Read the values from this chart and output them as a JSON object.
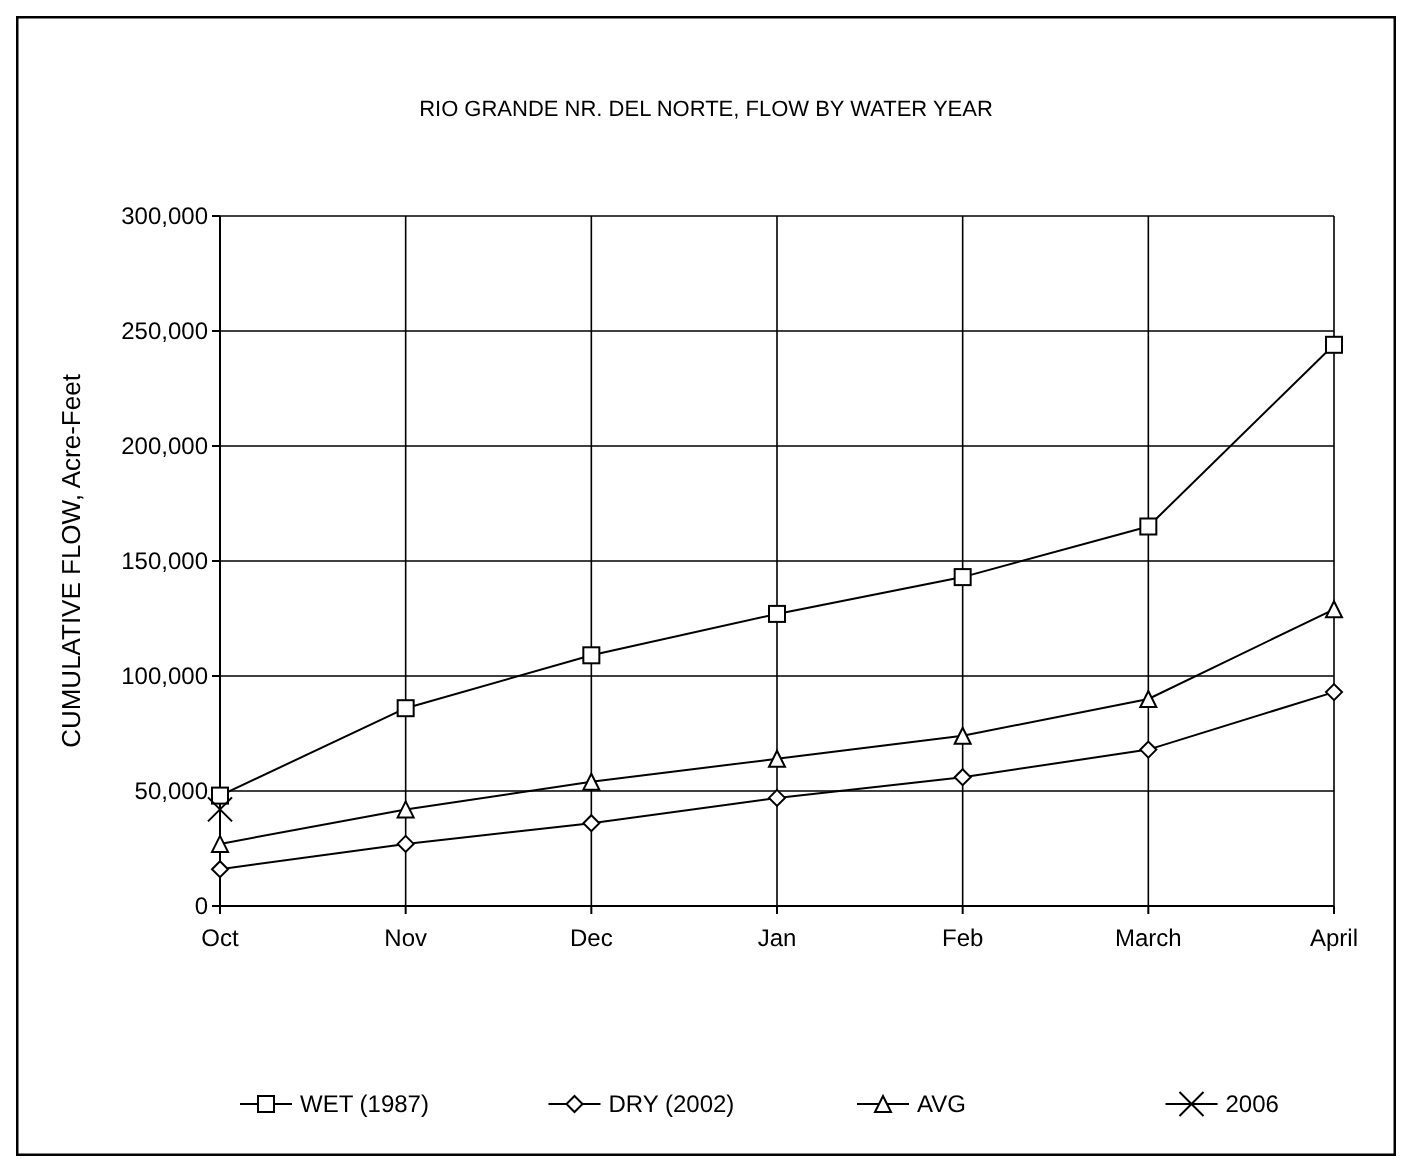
{
  "chart_data": {
    "type": "line",
    "title": "RIO GRANDE NR. DEL NORTE, FLOW BY WATER YEAR",
    "ylabel": "CUMULATIVE FLOW, Acre-Feet",
    "categories": [
      "Oct",
      "Nov",
      "Dec",
      "Jan",
      "Feb",
      "March",
      "April"
    ],
    "series": [
      {
        "name": "WET (1987)",
        "color": "#000000",
        "marker": "square",
        "values": [
          48000,
          86000,
          109000,
          127000,
          143000,
          165000,
          244000
        ]
      },
      {
        "name": "DRY (2002)",
        "color": "#000000",
        "marker": "diamond",
        "values": [
          16000,
          27000,
          36000,
          47000,
          56000,
          68000,
          93000
        ]
      },
      {
        "name": "AVG",
        "color": "#000000",
        "marker": "triangle",
        "values": [
          27000,
          42000,
          54000,
          64000,
          74000,
          90000,
          129000
        ]
      },
      {
        "name": "2006",
        "color": "#000000",
        "marker": "cross",
        "values": [
          42000,
          null,
          null,
          null,
          null,
          null,
          null
        ]
      }
    ],
    "ylim": [
      0,
      300000
    ],
    "yticks": [
      {
        "value": 0,
        "label": "0"
      },
      {
        "value": 50000,
        "label": "50,000"
      },
      {
        "value": 100000,
        "label": "100,000"
      },
      {
        "value": 150000,
        "label": "150,000"
      },
      {
        "value": 200000,
        "label": "200,000"
      },
      {
        "value": 250000,
        "label": "250,000"
      },
      {
        "value": 300000,
        "label": "300,000"
      }
    ],
    "grid": true,
    "legend": "bottom"
  }
}
